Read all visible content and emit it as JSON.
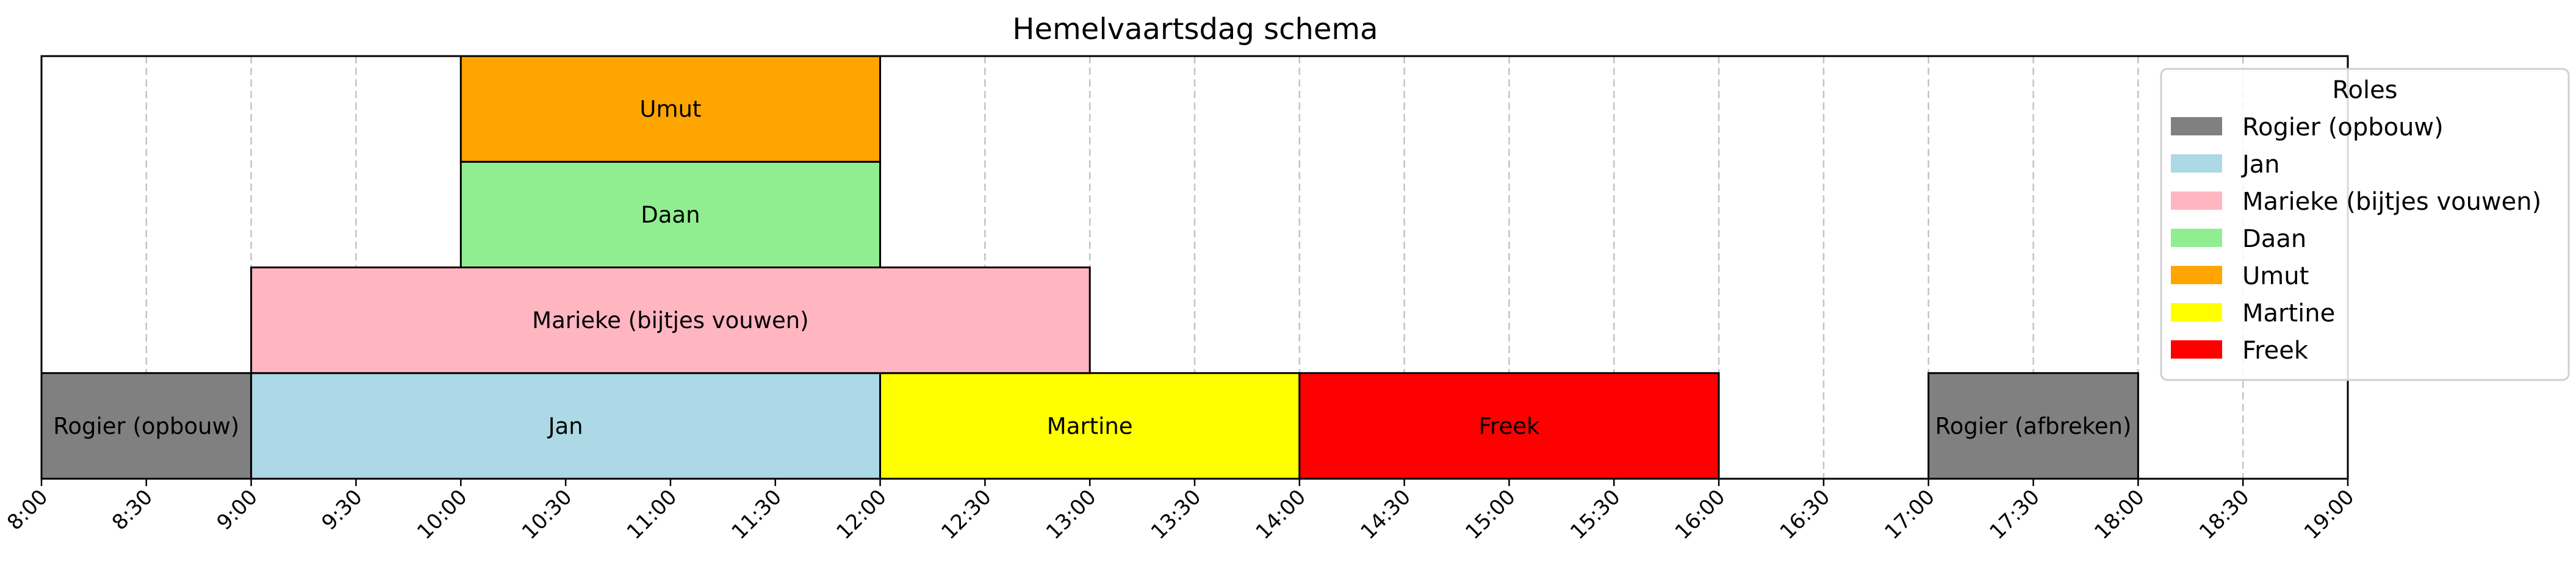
{
  "chart_data": {
    "type": "gantt",
    "title": "Hemelvaartsdag schema",
    "xlabel": "",
    "ylabel": "",
    "xlim": [
      "8:00",
      "19:00"
    ],
    "grid": "x-dashed",
    "x_ticks": [
      "8:00",
      "8:30",
      "9:00",
      "9:30",
      "10:00",
      "10:30",
      "11:00",
      "11:30",
      "12:00",
      "12:30",
      "13:00",
      "13:30",
      "14:00",
      "14:30",
      "15:00",
      "15:30",
      "16:00",
      "16:30",
      "17:00",
      "17:30",
      "18:00",
      "18:30",
      "19:00"
    ],
    "tasks": [
      {
        "label": "Rogier (opbouw)",
        "role": "Rogier (opbouw)",
        "start": "8:00",
        "end": "9:00",
        "row": 0
      },
      {
        "label": "Jan",
        "role": "Jan",
        "start": "9:00",
        "end": "12:00",
        "row": 0
      },
      {
        "label": "Martine",
        "role": "Martine",
        "start": "12:00",
        "end": "14:00",
        "row": 0
      },
      {
        "label": "Freek",
        "role": "Freek",
        "start": "14:00",
        "end": "16:00",
        "row": 0
      },
      {
        "label": "Rogier (afbreken)",
        "role": "Rogier (opbouw)",
        "start": "17:00",
        "end": "18:00",
        "row": 0
      },
      {
        "label": "Marieke (bijtjes vouwen)",
        "role": "Marieke (bijtjes vouwen)",
        "start": "9:00",
        "end": "13:00",
        "row": 1
      },
      {
        "label": "Daan",
        "role": "Daan",
        "start": "10:00",
        "end": "12:00",
        "row": 2
      },
      {
        "label": "Umut",
        "role": "Umut",
        "start": "10:00",
        "end": "12:00",
        "row": 3
      }
    ],
    "legend": {
      "title": "Roles",
      "placement": "upper-right",
      "entries": [
        {
          "name": "Rogier (opbouw)",
          "color": "#808080"
        },
        {
          "name": "Jan",
          "color": "#add8e6"
        },
        {
          "name": "Marieke (bijtjes vouwen)",
          "color": "#ffb6c1"
        },
        {
          "name": "Daan",
          "color": "#90ee90"
        },
        {
          "name": "Umut",
          "color": "#ffa500"
        },
        {
          "name": "Martine",
          "color": "#ffff00"
        },
        {
          "name": "Freek",
          "color": "#ff0000"
        }
      ]
    }
  }
}
